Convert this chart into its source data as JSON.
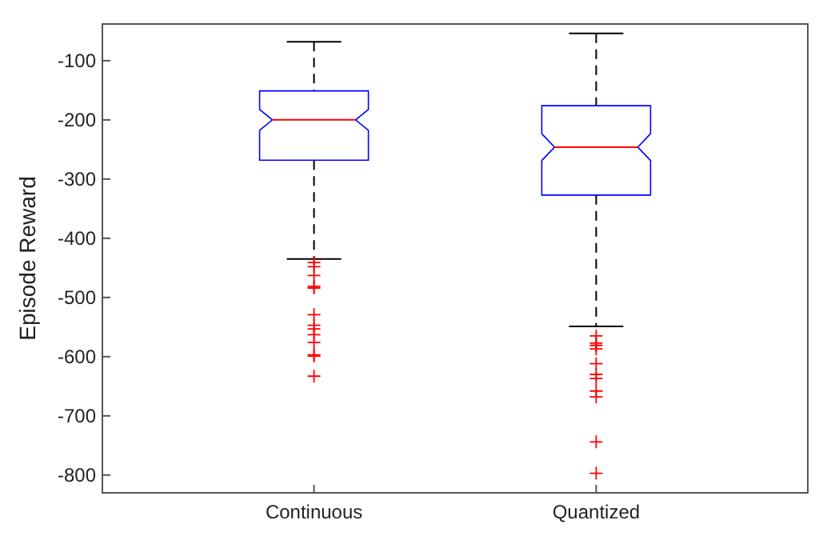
{
  "chart_data": {
    "type": "box",
    "ylabel": "Episode Reward",
    "categories": [
      "Continuous",
      "Quantized"
    ],
    "ylim": [
      -830,
      -38
    ],
    "yticks": [
      -800,
      -700,
      -600,
      -500,
      -400,
      -300,
      -200,
      -100
    ],
    "series": [
      {
        "color": "#0000ff",
        "boxes": [
          {
            "low": -435,
            "q1": -268,
            "median": -200,
            "q3": -151,
            "high": -68,
            "outliers": [
              -441,
              -448,
              -463,
              -481,
              -484,
              -529,
              -547,
              -553,
              -563,
              -576,
              -597,
              -599,
              -633
            ]
          },
          {
            "low": -549,
            "q1": -327,
            "median": -246,
            "q3": -176,
            "high": -54,
            "outliers": [
              -565,
              -577,
              -581,
              -587,
              -612,
              -630,
              -637,
              -658,
              -668,
              -744,
              -797
            ]
          }
        ]
      }
    ]
  }
}
